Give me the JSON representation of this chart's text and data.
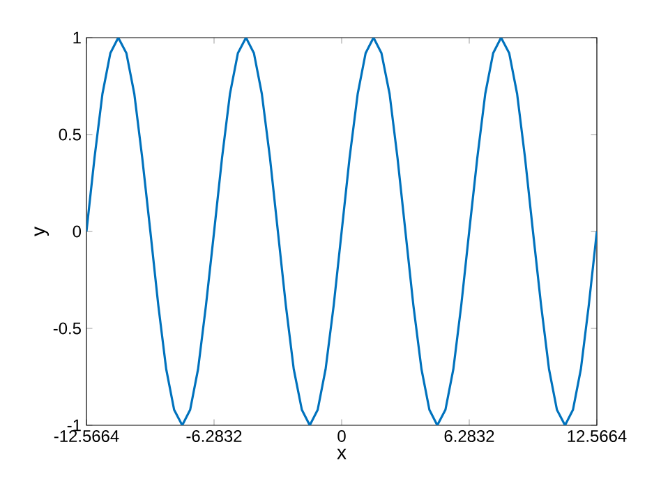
{
  "chart_data": {
    "type": "line",
    "xlabel": "x",
    "ylabel": "y",
    "xlim": [
      -12.5664,
      12.5664
    ],
    "ylim": [
      -1,
      1
    ],
    "xticks": [
      -12.5664,
      -6.2832,
      0,
      6.2832,
      12.5664
    ],
    "yticks": [
      -1,
      -0.5,
      0,
      0.5,
      1
    ],
    "grid": false,
    "marker": "none",
    "line_style": "solid",
    "series": [
      {
        "color": "#0072bd",
        "x": [
          -12.5664,
          -12.17,
          -11.78,
          -11.39,
          -11.0,
          -10.6,
          -10.21,
          -9.82,
          -9.42,
          -9.03,
          -8.64,
          -8.25,
          -7.85,
          -7.46,
          -7.07,
          -6.68,
          -6.28,
          -5.89,
          -5.5,
          -5.11,
          -4.71,
          -4.32,
          -3.93,
          -3.53,
          -3.14,
          -2.75,
          -2.36,
          -1.96,
          -1.57,
          -1.18,
          -0.79,
          -0.39,
          0,
          0.39,
          0.79,
          1.18,
          1.57,
          1.96,
          2.36,
          2.75,
          3.14,
          3.53,
          3.93,
          4.32,
          4.71,
          5.11,
          5.5,
          5.89,
          6.28,
          6.68,
          7.07,
          7.46,
          7.85,
          8.25,
          8.64,
          9.03,
          9.42,
          9.82,
          10.21,
          10.6,
          11.0,
          11.39,
          11.78,
          12.17,
          12.5664
        ],
        "values": [
          0,
          0.38,
          0.71,
          0.92,
          1,
          0.92,
          0.71,
          0.38,
          0,
          -0.38,
          -0.71,
          -0.92,
          -1,
          -0.92,
          -0.71,
          -0.38,
          0,
          0.38,
          0.71,
          0.92,
          1,
          0.92,
          0.71,
          0.38,
          0,
          -0.38,
          -0.71,
          -0.92,
          -1,
          -0.92,
          -0.71,
          -0.38,
          0,
          0.38,
          0.71,
          0.92,
          1,
          0.92,
          0.71,
          0.38,
          0,
          -0.38,
          -0.71,
          -0.92,
          -1,
          -0.92,
          -0.71,
          -0.38,
          0,
          0.38,
          0.71,
          0.92,
          1,
          0.92,
          0.71,
          0.38,
          0,
          -0.38,
          -0.71,
          -0.92,
          -1,
          -0.92,
          -0.71,
          -0.38,
          0
        ]
      }
    ]
  }
}
